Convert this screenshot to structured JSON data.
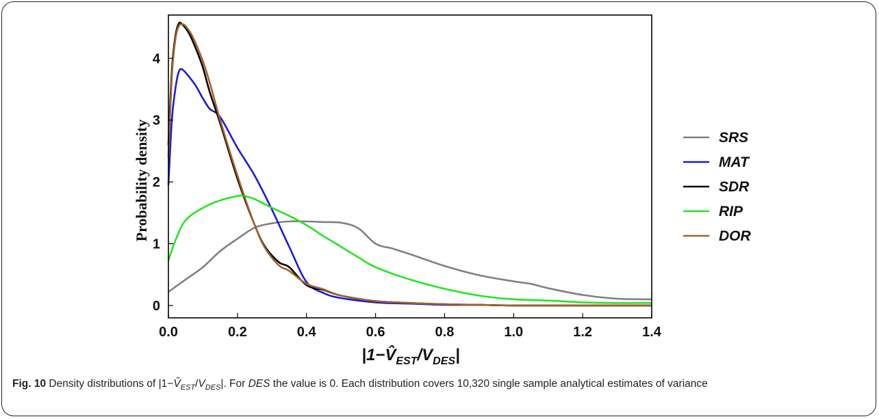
{
  "caption": {
    "fig_number": "Fig. 10",
    "text_before": " Density distributions of |1−",
    "vhat": "V̂",
    "sub_est": "EST",
    "slash": "/",
    "v": "V",
    "sub_des": "DES",
    "text_mid": "|. For ",
    "des_word": "DES",
    "text_after": " the value is 0. Each distribution covers 10,320 single sample analytical estimates of variance"
  },
  "chart_data": {
    "type": "line",
    "title": "",
    "xlabel": "|1−V̂EST/VDES|",
    "xlabel_parts": {
      "prefix": "|1−",
      "vhat": "V̂",
      "sub_est": "EST",
      "slash": "/",
      "v": "V",
      "sub_des": "DES",
      "suffix": "|"
    },
    "ylabel": "Probability density",
    "xlim": [
      0.0,
      1.4
    ],
    "ylim": [
      -0.2,
      4.7
    ],
    "x_ticks": [
      "0.0",
      "0.2",
      "0.4",
      "0.6",
      "0.8",
      "1.0",
      "1.2",
      "1.4"
    ],
    "y_ticks": [
      "0",
      "1",
      "2",
      "3",
      "4"
    ],
    "grid": false,
    "legend_position": "right",
    "series": [
      {
        "name": "SRS",
        "color": "#808080",
        "x": [
          0.0,
          0.05,
          0.1,
          0.15,
          0.2,
          0.25,
          0.3,
          0.35,
          0.4,
          0.45,
          0.5,
          0.55,
          0.6,
          0.65,
          0.7,
          0.8,
          0.9,
          1.0,
          1.05,
          1.1,
          1.2,
          1.3,
          1.4
        ],
        "y": [
          0.22,
          0.42,
          0.62,
          0.88,
          1.08,
          1.26,
          1.33,
          1.36,
          1.36,
          1.35,
          1.34,
          1.25,
          1.0,
          0.92,
          0.83,
          0.64,
          0.49,
          0.39,
          0.35,
          0.28,
          0.17,
          0.11,
          0.1
        ]
      },
      {
        "name": "MAT",
        "color": "#1a1adc",
        "x": [
          0.0,
          0.01,
          0.02,
          0.03,
          0.04,
          0.06,
          0.08,
          0.1,
          0.12,
          0.15,
          0.2,
          0.25,
          0.3,
          0.35,
          0.4,
          0.45,
          0.5,
          0.6,
          0.7,
          0.8,
          0.9,
          1.0,
          1.2,
          1.4
        ],
        "y": [
          1.95,
          3.0,
          3.5,
          3.78,
          3.82,
          3.7,
          3.55,
          3.35,
          3.18,
          3.05,
          2.55,
          2.1,
          1.55,
          0.95,
          0.38,
          0.2,
          0.12,
          0.05,
          0.03,
          0.01,
          0.01,
          0.0,
          0.0,
          0.0
        ]
      },
      {
        "name": "SDR",
        "color": "#000000",
        "x": [
          0.0,
          0.01,
          0.02,
          0.03,
          0.04,
          0.06,
          0.08,
          0.1,
          0.12,
          0.15,
          0.2,
          0.25,
          0.28,
          0.32,
          0.35,
          0.4,
          0.45,
          0.5,
          0.6,
          0.7,
          0.8,
          0.9,
          1.0,
          1.2,
          1.4
        ],
        "y": [
          2.6,
          3.8,
          4.35,
          4.56,
          4.55,
          4.4,
          4.15,
          3.85,
          3.45,
          2.95,
          2.05,
          1.3,
          0.95,
          0.7,
          0.62,
          0.33,
          0.25,
          0.16,
          0.07,
          0.04,
          0.02,
          0.01,
          0.0,
          0.0,
          0.0
        ]
      },
      {
        "name": "RIP",
        "color": "#22e622",
        "x": [
          0.0,
          0.02,
          0.05,
          0.1,
          0.15,
          0.2,
          0.22,
          0.25,
          0.3,
          0.35,
          0.4,
          0.45,
          0.5,
          0.55,
          0.6,
          0.7,
          0.8,
          0.9,
          1.0,
          1.1,
          1.2,
          1.3,
          1.4
        ],
        "y": [
          0.73,
          1.05,
          1.38,
          1.58,
          1.7,
          1.77,
          1.77,
          1.72,
          1.58,
          1.45,
          1.3,
          1.12,
          0.95,
          0.78,
          0.62,
          0.42,
          0.27,
          0.16,
          0.1,
          0.08,
          0.05,
          0.04,
          0.04
        ]
      },
      {
        "name": "DOR",
        "color": "#a0622a",
        "x": [
          0.0,
          0.01,
          0.02,
          0.03,
          0.04,
          0.05,
          0.07,
          0.1,
          0.12,
          0.15,
          0.2,
          0.25,
          0.28,
          0.32,
          0.35,
          0.4,
          0.45,
          0.5,
          0.6,
          0.7,
          0.8,
          0.9,
          1.0,
          1.2,
          1.4
        ],
        "y": [
          2.4,
          3.7,
          4.3,
          4.52,
          4.55,
          4.52,
          4.35,
          3.95,
          3.6,
          3.0,
          2.1,
          1.3,
          0.93,
          0.65,
          0.56,
          0.35,
          0.26,
          0.16,
          0.07,
          0.04,
          0.02,
          0.01,
          0.0,
          0.0,
          0.0
        ]
      }
    ]
  }
}
